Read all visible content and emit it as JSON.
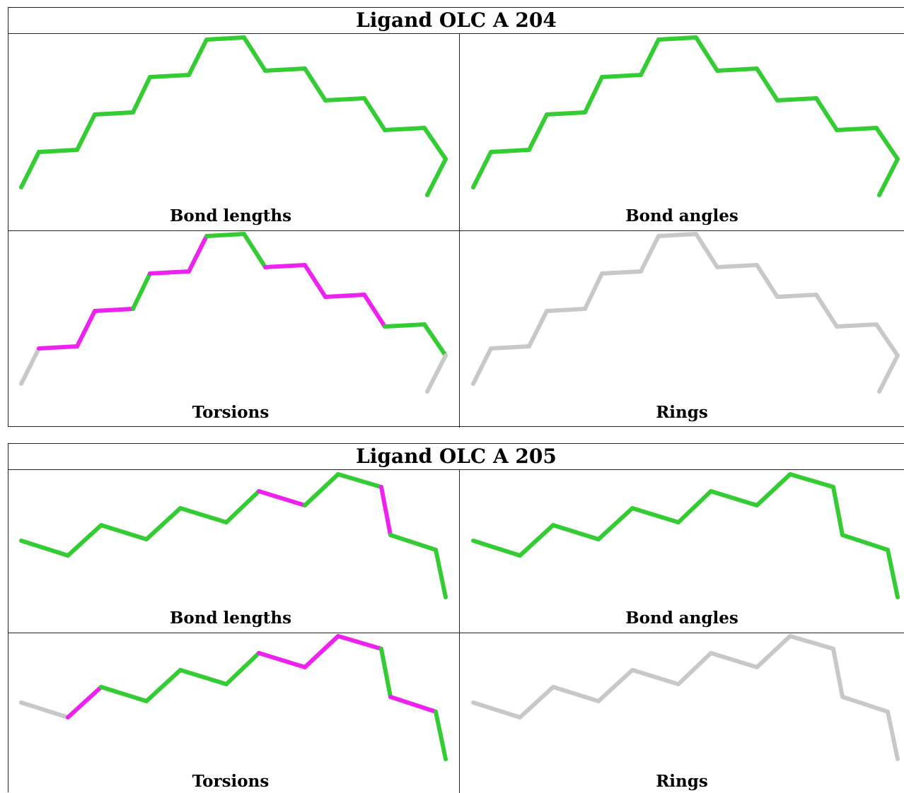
{
  "tables": [
    {
      "title": "Ligand OLC A 204",
      "captions": [
        "Bond lengths",
        "Bond angles",
        "Torsions",
        "Rings"
      ]
    },
    {
      "title": "Ligand OLC A 205",
      "captions": [
        "Bond lengths",
        "Bond angles",
        "Torsions",
        "Rings"
      ]
    }
  ],
  "colors": {
    "ok": "#33cc33",
    "outlier": "#ee22ee",
    "neutral": "#c8c8c8"
  }
}
